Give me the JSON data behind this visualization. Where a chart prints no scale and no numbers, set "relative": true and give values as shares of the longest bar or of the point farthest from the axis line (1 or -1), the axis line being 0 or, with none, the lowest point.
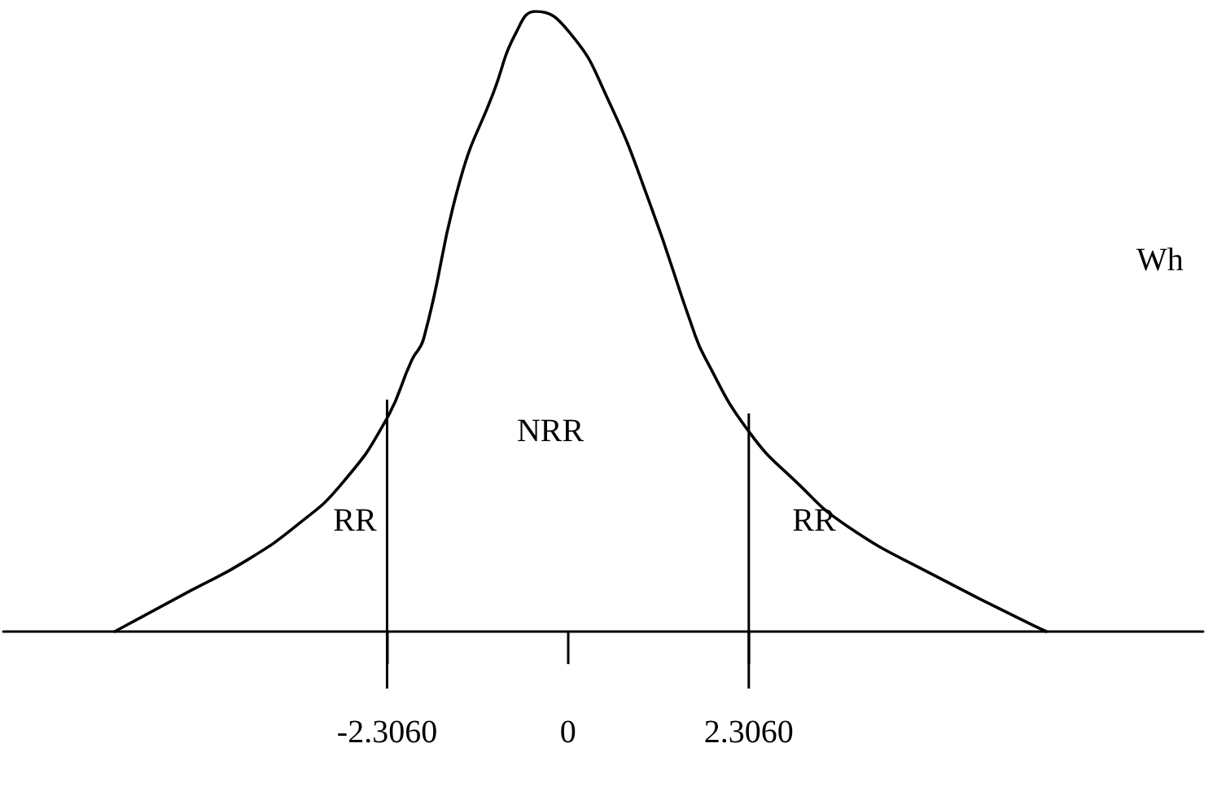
{
  "chart_data": {
    "type": "line",
    "relative": true,
    "x": [
      -5.78,
      -4.81,
      -4.12,
      -3.44,
      -2.88,
      -2.32,
      -1.99,
      -1.84,
      -1.37,
      -0.95,
      -0.66,
      -0.41,
      0.02,
      0.5,
      1.06,
      1.58,
      1.75,
      2.31,
      2.93,
      3.55,
      4.65,
      6.1
    ],
    "series": [
      {
        "color": "#000000",
        "values": [
          0,
          0.066,
          0.113,
          0.173,
          0.239,
          0.341,
          0.438,
          0.472,
          0.73,
          0.869,
          0.966,
          1,
          0.966,
          0.861,
          0.685,
          0.493,
          0.441,
          0.322,
          0.239,
          0.171,
          0.092,
          0
        ]
      }
    ],
    "xlim": [
      -7.2,
      8.1
    ],
    "xticks": [
      {
        "value": -2.306,
        "label": "-2.3060"
      },
      0,
      {
        "value": 2.306,
        "label": "2.3060"
      }
    ],
    "ref_lines": [
      {
        "axis": "x",
        "value": -2.306,
        "color": "#000000"
      },
      {
        "axis": "x",
        "value": 2.306,
        "color": "#000000"
      }
    ],
    "annotations": [
      "NRR",
      "RR",
      "RR",
      "Wh"
    ],
    "grid": false,
    "marker": "none",
    "line_style": "solid"
  }
}
